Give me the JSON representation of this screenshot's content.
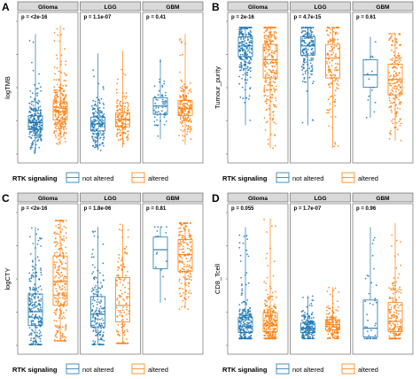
{
  "colors": {
    "not_altered": "#1f77b4",
    "altered": "#ff7f0e",
    "strip": "#d9d9d9"
  },
  "legend": {
    "title": "RTK signaling",
    "items": [
      "not altered",
      "altered"
    ]
  },
  "chart_data": [
    {
      "panel": "A",
      "type": "scatter",
      "ylabel": "logTMB",
      "ylim": [
        -1.2,
        3.6
      ],
      "facets": [
        {
          "name": "Glioma",
          "p_label": "p = <2e-16",
          "series": [
            {
              "name": "not altered",
              "median": 0.0,
              "q1": -0.25,
              "q3": 0.25,
              "min": -1.1,
              "max": 3.2,
              "n": 240
            },
            {
              "name": "altered",
              "median": 0.4,
              "q1": 0.1,
              "q3": 0.75,
              "min": -0.8,
              "max": 3.5,
              "n": 300
            }
          ]
        },
        {
          "name": "LGG",
          "p_label": "p = 1.1e-07",
          "series": [
            {
              "name": "not altered",
              "median": -0.05,
              "q1": -0.3,
              "q3": 0.2,
              "min": -1.0,
              "max": 2.5,
              "n": 180
            },
            {
              "name": "altered",
              "median": 0.1,
              "q1": -0.15,
              "q3": 0.35,
              "min": -0.9,
              "max": 2.6,
              "n": 150
            }
          ]
        },
        {
          "name": "GBM",
          "p_label": "p = 0.41",
          "series": [
            {
              "name": "not altered",
              "median": 0.6,
              "q1": 0.3,
              "q3": 0.9,
              "min": -0.6,
              "max": 2.3,
              "n": 60
            },
            {
              "name": "altered",
              "median": 0.5,
              "q1": 0.25,
              "q3": 0.8,
              "min": -0.8,
              "max": 3.2,
              "n": 180
            }
          ]
        }
      ]
    },
    {
      "panel": "B",
      "type": "scatter",
      "ylabel": "Tumour_purity",
      "ylim": [
        0.15,
        1.02
      ],
      "facets": [
        {
          "name": "Glioma",
          "p_label": "p = 2e-16",
          "series": [
            {
              "name": "not altered",
              "median": 0.87,
              "q1": 0.8,
              "q3": 0.93,
              "min": 0.35,
              "max": 0.99,
              "n": 240
            },
            {
              "name": "altered",
              "median": 0.78,
              "q1": 0.66,
              "q3": 0.88,
              "min": 0.2,
              "max": 0.99,
              "n": 300
            }
          ]
        },
        {
          "name": "LGG",
          "p_label": "p = 4.7e-15",
          "series": [
            {
              "name": "not altered",
              "median": 0.87,
              "q1": 0.81,
              "q3": 0.93,
              "min": 0.35,
              "max": 0.99,
              "n": 180
            },
            {
              "name": "altered",
              "median": 0.79,
              "q1": 0.66,
              "q3": 0.88,
              "min": 0.2,
              "max": 0.99,
              "n": 150
            }
          ]
        },
        {
          "name": "GBM",
          "p_label": "p = 0.61",
          "series": [
            {
              "name": "not altered",
              "median": 0.68,
              "q1": 0.6,
              "q3": 0.78,
              "min": 0.4,
              "max": 0.93,
              "n": 15
            },
            {
              "name": "altered",
              "median": 0.65,
              "q1": 0.55,
              "q3": 0.75,
              "min": 0.25,
              "max": 0.95,
              "n": 180
            }
          ]
        }
      ]
    },
    {
      "panel": "C",
      "type": "scatter",
      "ylabel": "logCTY",
      "ylim": [
        0.0,
        1.05
      ],
      "facets": [
        {
          "name": "Glioma",
          "p_label": "p = <2e-16",
          "series": [
            {
              "name": "not altered",
              "median": 0.28,
              "q1": 0.17,
              "q3": 0.42,
              "min": 0.02,
              "max": 0.95,
              "n": 240
            },
            {
              "name": "altered",
              "median": 0.52,
              "q1": 0.33,
              "q3": 0.72,
              "min": 0.05,
              "max": 1.0,
              "n": 300
            }
          ]
        },
        {
          "name": "LGG",
          "p_label": "p = 1.8e-06",
          "series": [
            {
              "name": "not altered",
              "median": 0.26,
              "q1": 0.16,
              "q3": 0.4,
              "min": 0.02,
              "max": 0.95,
              "n": 180
            },
            {
              "name": "altered",
              "median": 0.33,
              "q1": 0.2,
              "q3": 0.55,
              "min": 0.03,
              "max": 0.97,
              "n": 150
            }
          ]
        },
        {
          "name": "GBM",
          "p_label": "p = 0.81",
          "series": [
            {
              "name": "not altered",
              "median": 0.77,
              "q1": 0.62,
              "q3": 0.87,
              "min": 0.35,
              "max": 0.95,
              "n": 15
            },
            {
              "name": "altered",
              "median": 0.73,
              "q1": 0.6,
              "q3": 0.85,
              "min": 0.3,
              "max": 0.98,
              "n": 180
            }
          ]
        }
      ]
    },
    {
      "panel": "D",
      "type": "scatter",
      "ylabel": "CD8_Tcell",
      "ylim": [
        -0.1,
        1.45
      ],
      "facets": [
        {
          "name": "Glioma",
          "p_label": "p = 0.055",
          "series": [
            {
              "name": "not altered",
              "median": 0.14,
              "q1": 0.07,
              "q3": 0.25,
              "min": 0.0,
              "max": 1.3,
              "n": 240
            },
            {
              "name": "altered",
              "median": 0.15,
              "q1": 0.08,
              "q3": 0.3,
              "min": 0.0,
              "max": 1.4,
              "n": 300
            }
          ]
        },
        {
          "name": "LGG",
          "p_label": "p = 1.7e-07",
          "series": [
            {
              "name": "not altered",
              "median": 0.12,
              "q1": 0.07,
              "q3": 0.18,
              "min": 0.0,
              "max": 0.5,
              "n": 180
            },
            {
              "name": "altered",
              "median": 0.16,
              "q1": 0.1,
              "q3": 0.22,
              "min": 0.0,
              "max": 0.6,
              "n": 150
            }
          ]
        },
        {
          "name": "GBM",
          "p_label": "p = 0.96",
          "series": [
            {
              "name": "not altered",
              "median": 0.12,
              "q1": 0.02,
              "q3": 0.45,
              "min": 0.0,
              "max": 1.3,
              "n": 40
            },
            {
              "name": "altered",
              "median": 0.2,
              "q1": 0.08,
              "q3": 0.42,
              "min": 0.0,
              "max": 1.35,
              "n": 180
            }
          ]
        }
      ]
    }
  ]
}
